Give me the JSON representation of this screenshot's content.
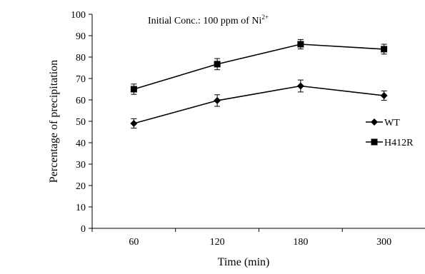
{
  "chart_data": {
    "type": "line",
    "annotation": {
      "text": "Initial Conc.: 100 ppm of  Ni",
      "superscript": "2+"
    },
    "xlabel": "Time (min)",
    "ylabel": "Percentage of precipitation",
    "categories": [
      "60",
      "120",
      "180",
      "300"
    ],
    "ylim": [
      0,
      100
    ],
    "yticks": [
      0,
      10,
      20,
      30,
      40,
      50,
      60,
      70,
      80,
      90,
      100
    ],
    "grid": false,
    "legend_position": "right",
    "series": [
      {
        "name": "WT",
        "marker": "diamond",
        "values": [
          49,
          59.7,
          66.5,
          62
        ],
        "errors": [
          2.2,
          2.7,
          2.8,
          2.2
        ]
      },
      {
        "name": "H412R",
        "marker": "square",
        "values": [
          65,
          76.7,
          86,
          83.7
        ],
        "errors": [
          2.4,
          2.6,
          2.2,
          2.3
        ]
      }
    ]
  }
}
